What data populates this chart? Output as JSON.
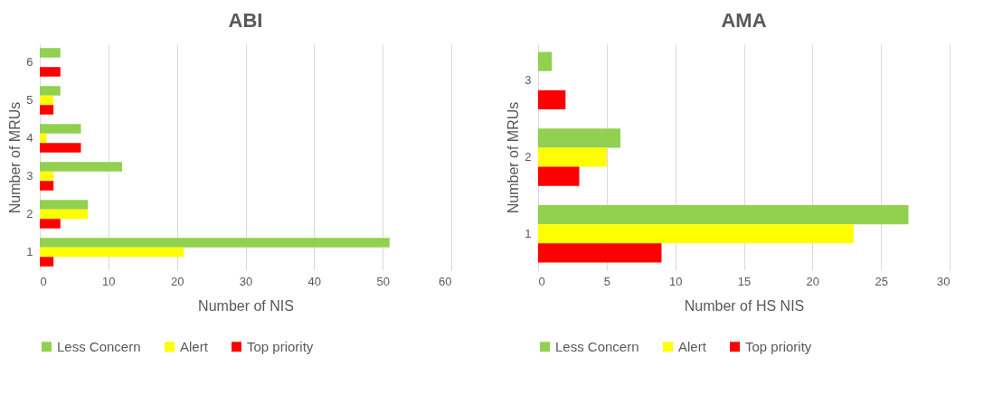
{
  "chart_data": [
    {
      "type": "bar",
      "orientation": "horizontal",
      "title": "ABI",
      "xlabel": "Number of NIS",
      "ylabel": "Number of MRUs",
      "categories": [
        "6",
        "5",
        "4",
        "3",
        "2",
        "1"
      ],
      "xlim": [
        0,
        60
      ],
      "xticks": [
        0,
        10,
        20,
        30,
        40,
        50,
        60
      ],
      "grid": "x",
      "legend": "bottom",
      "series": [
        {
          "name": "Less Concern",
          "color": "#92d050",
          "values": [
            3,
            3,
            6,
            12,
            7,
            51
          ]
        },
        {
          "name": "Alert",
          "color": "#ffff00",
          "values": [
            0,
            2,
            1,
            2,
            7,
            21
          ]
        },
        {
          "name": "Top priority",
          "color": "#ff0000",
          "values": [
            3,
            2,
            6,
            2,
            3,
            2
          ]
        }
      ]
    },
    {
      "type": "bar",
      "orientation": "horizontal",
      "title": "AMA",
      "xlabel": "Number of HS NIS",
      "ylabel": "Number of MRUs",
      "categories": [
        "3",
        "2",
        "1"
      ],
      "xlim": [
        0,
        30
      ],
      "xticks": [
        0,
        5,
        10,
        15,
        20,
        25,
        30
      ],
      "grid": "x",
      "legend": "bottom",
      "series": [
        {
          "name": "Less Concern",
          "color": "#92d050",
          "values": [
            1,
            6,
            27
          ]
        },
        {
          "name": "Alert",
          "color": "#ffff00",
          "values": [
            0,
            5,
            23
          ]
        },
        {
          "name": "Top priority",
          "color": "#ff0000",
          "values": [
            2,
            3,
            9
          ]
        }
      ]
    }
  ]
}
